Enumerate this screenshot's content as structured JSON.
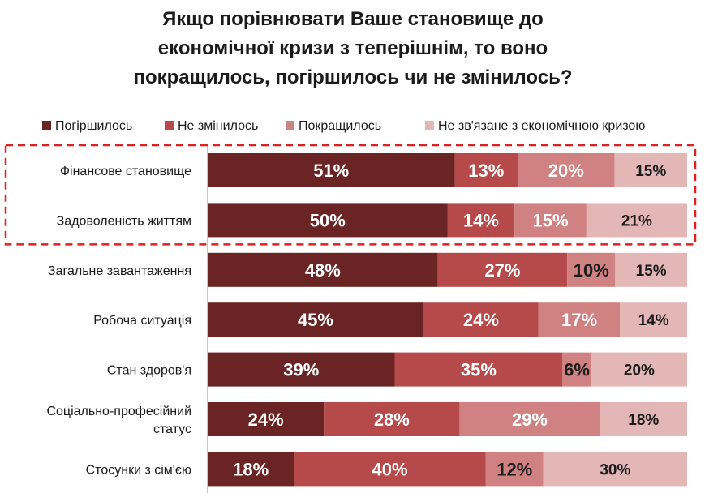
{
  "title_lines": [
    "Якщо порівнювати Ваше становище до",
    "економічної кризи з теперішнім, то воно",
    "покращилось, погіршилось чи не змінилось?"
  ],
  "colors": {
    "series": [
      "#6b2424",
      "#b64a4a",
      "#d08181",
      "#e4b7b7"
    ],
    "highlight_border": "#e02020",
    "axis": "#888888",
    "text": "#1a1a1a"
  },
  "chart_data": {
    "type": "bar",
    "orientation": "horizontal",
    "stacked": true,
    "title": "Якщо порівнювати Ваше становище до економічної кризи з теперішнім, то воно покращилось, погіршилось чи не змінилось?",
    "legend_position": "top",
    "categories": [
      [
        "Фінансове становище"
      ],
      [
        "Задоволеність життям"
      ],
      [
        "Загальне завантаження"
      ],
      [
        "Робоча ситуація"
      ],
      [
        "Стан здоров'я"
      ],
      [
        "Соціально-професійний",
        "статус"
      ],
      [
        "Стосунки з сім'єю"
      ]
    ],
    "series": [
      {
        "name": "Погіршилось",
        "values": [
          51,
          50,
          48,
          45,
          39,
          24,
          18
        ]
      },
      {
        "name": "Не змінилось",
        "values": [
          13,
          14,
          27,
          24,
          35,
          28,
          40
        ]
      },
      {
        "name": "Покращилось",
        "values": [
          20,
          15,
          10,
          17,
          6,
          29,
          12
        ]
      },
      {
        "name": "Не зв'язане з економічною кризою",
        "values": [
          15,
          21,
          15,
          14,
          20,
          18,
          30
        ]
      }
    ],
    "highlighted_categories": [
      0,
      1
    ],
    "value_suffix": "%"
  }
}
